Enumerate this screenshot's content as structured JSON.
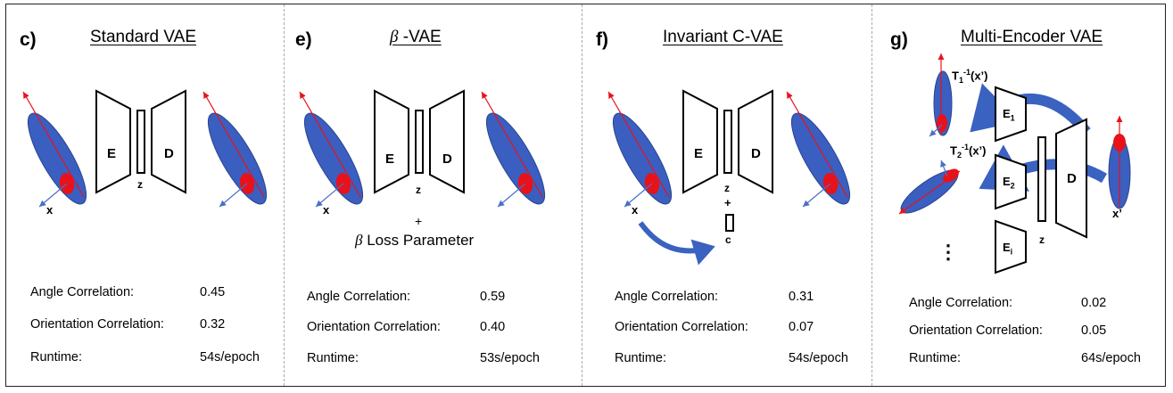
{
  "panels": [
    {
      "letter": "c)",
      "title": "Standard VAE",
      "labels": {
        "x": "x",
        "E": "E",
        "D": "D",
        "z": "z"
      },
      "metrics": [
        {
          "label": "Angle Correlation:",
          "value": "0.45"
        },
        {
          "label": "Orientation Correlation:",
          "value": "0.32"
        },
        {
          "label": "Runtime:",
          "value": "54s/epoch"
        }
      ]
    },
    {
      "letter": "e)",
      "title_symbol": "β",
      "title_rest": " -VAE",
      "labels": {
        "x": "x",
        "E": "E",
        "D": "D",
        "z": "z",
        "plus": "+",
        "loss_symbol": "β",
        "loss_text": " Loss Parameter"
      },
      "metrics": [
        {
          "label": "Angle Correlation:",
          "value": "0.59"
        },
        {
          "label": "Orientation Correlation:",
          "value": "0.40"
        },
        {
          "label": "Runtime:",
          "value": "53s/epoch"
        }
      ]
    },
    {
      "letter": "f)",
      "title": "Invariant C-VAE",
      "labels": {
        "x": "x",
        "E": "E",
        "D": "D",
        "z": "z",
        "plus": "+",
        "c": "c"
      },
      "metrics": [
        {
          "label": "Angle Correlation:",
          "value": "0.31"
        },
        {
          "label": "Orientation Correlation:",
          "value": "0.07"
        },
        {
          "label": "Runtime:",
          "value": "54s/epoch"
        }
      ]
    },
    {
      "letter": "g)",
      "title": "Multi-Encoder VAE",
      "labels": {
        "T1": "T",
        "T1_sub": "1",
        "T1_sup": "-1",
        "T1_arg": "(x’)",
        "T2": "T",
        "T2_sub": "2",
        "T2_sup": "-1",
        "T2_arg": "(x’)",
        "E1": "E",
        "E1_sub": "1",
        "E2": "E",
        "E2_sub": "2",
        "Ei": "E",
        "Ei_sub": "i",
        "D": "D",
        "z": "z",
        "xp": "x’",
        "dots": "⋮"
      },
      "metrics": [
        {
          "label": "Angle Correlation:",
          "value": "0.02"
        },
        {
          "label": "Orientation Correlation:",
          "value": "0.05"
        },
        {
          "label": "Runtime:",
          "value": "64s/epoch"
        }
      ]
    }
  ],
  "colors": {
    "ellipse": "#3a5fc0",
    "ellipse_stroke": "#2a4590",
    "dot": "#e8121b",
    "red_axis": "#e8121b",
    "blue_axis": "#4a6fc5",
    "arrow": "#3a62c0"
  }
}
